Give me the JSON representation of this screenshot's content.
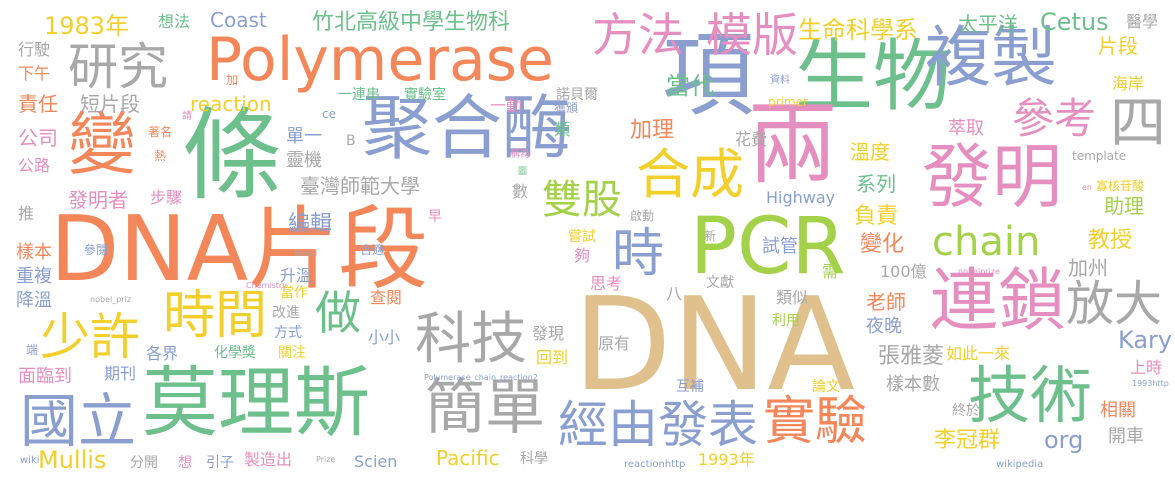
{
  "colors": {
    "orange": "#f4875a",
    "green": "#6dbf8c",
    "blue": "#8a9fd0",
    "pink": "#e58fc0",
    "lime": "#a3d14a",
    "yellow": "#f2cf2a",
    "tan": "#e0c08c",
    "gray": "#a8a8a8"
  },
  "words": [
    {
      "text": "DNA片段"
    },
    {
      "text": "DNA"
    },
    {
      "text": "條"
    },
    {
      "text": "聚合酶"
    },
    {
      "text": "生物"
    },
    {
      "text": "PCR"
    },
    {
      "text": "莫理斯"
    },
    {
      "text": "Polymerase"
    },
    {
      "text": "項"
    },
    {
      "text": "兩"
    },
    {
      "text": "發明"
    },
    {
      "text": "連鎖"
    },
    {
      "text": "複製"
    },
    {
      "text": "變"
    },
    {
      "text": "技術"
    },
    {
      "text": "實驗"
    },
    {
      "text": "簡單"
    },
    {
      "text": "經由發表"
    },
    {
      "text": "國立"
    },
    {
      "text": "科技"
    },
    {
      "text": "時間"
    },
    {
      "text": "少許"
    },
    {
      "text": "合成"
    },
    {
      "text": "雙股"
    },
    {
      "text": "時"
    },
    {
      "text": "方法"
    },
    {
      "text": "模版"
    },
    {
      "text": "研究"
    },
    {
      "text": "chain"
    },
    {
      "text": "放大"
    },
    {
      "text": "參考"
    },
    {
      "text": "做"
    },
    {
      "text": "四"
    },
    {
      "text": "竹北高級中學生物科"
    },
    {
      "text": "生命科學系"
    },
    {
      "text": "Cetus"
    },
    {
      "text": "1983年"
    },
    {
      "text": "Coast"
    },
    {
      "text": "想法"
    },
    {
      "text": "太平洋"
    },
    {
      "text": "醫學"
    },
    {
      "text": "片段"
    },
    {
      "text": "海岸"
    },
    {
      "text": "行駛"
    },
    {
      "text": "下午"
    },
    {
      "text": "責任"
    },
    {
      "text": "短片段"
    },
    {
      "text": "公司"
    },
    {
      "text": "公路"
    },
    {
      "text": "發明者"
    },
    {
      "text": "步驟"
    },
    {
      "text": "推"
    },
    {
      "text": "樣本"
    },
    {
      "text": "參閱"
    },
    {
      "text": "重複"
    },
    {
      "text": "降溫"
    },
    {
      "text": "reaction"
    },
    {
      "text": "一連串"
    },
    {
      "text": "實驗室"
    },
    {
      "text": "一動"
    },
    {
      "text": "諾貝爾"
    },
    {
      "text": "獲頒"
    },
    {
      "text": "當代"
    },
    {
      "text": "加理"
    },
    {
      "text": "花費"
    },
    {
      "text": "溫度"
    },
    {
      "text": "萃取"
    },
    {
      "text": "系列"
    },
    {
      "text": "負責"
    },
    {
      "text": "助理"
    },
    {
      "text": "教授"
    },
    {
      "text": "加州"
    },
    {
      "text": "Kary"
    },
    {
      "text": "Mullis"
    },
    {
      "text": "臺灣師範大學"
    },
    {
      "text": "單一"
    },
    {
      "text": "靈機"
    },
    {
      "text": "編輯"
    },
    {
      "text": "升溫"
    },
    {
      "text": "當作"
    },
    {
      "text": "方式"
    },
    {
      "text": "改進"
    },
    {
      "text": "查閱"
    },
    {
      "text": "化學獎"
    },
    {
      "text": "關注"
    },
    {
      "text": "各界"
    },
    {
      "text": "期刊"
    },
    {
      "text": "面臨到"
    },
    {
      "text": "端"
    },
    {
      "text": "小小"
    },
    {
      "text": "發現"
    },
    {
      "text": "回到"
    },
    {
      "text": "原有"
    },
    {
      "text": "互補"
    },
    {
      "text": "論文"
    },
    {
      "text": "終於"
    },
    {
      "text": "上時"
    },
    {
      "text": "相關"
    },
    {
      "text": "開車"
    },
    {
      "text": "org"
    },
    {
      "text": "李冠群"
    },
    {
      "text": "張雅菱"
    },
    {
      "text": "如此一來"
    },
    {
      "text": "樣本數"
    },
    {
      "text": "夜晚"
    },
    {
      "text": "老師"
    },
    {
      "text": "變化"
    },
    {
      "text": "試管"
    },
    {
      "text": "需"
    },
    {
      "text": "100億"
    },
    {
      "text": "類似"
    },
    {
      "text": "利用"
    },
    {
      "text": "文獻"
    },
    {
      "text": "思考"
    },
    {
      "text": "八"
    },
    {
      "text": "夠"
    },
    {
      "text": "嘗試"
    },
    {
      "text": "合適"
    },
    {
      "text": "早"
    },
    {
      "text": "啟動"
    },
    {
      "text": "新"
    },
    {
      "text": "Highway"
    },
    {
      "text": "數"
    },
    {
      "text": "Pacific"
    },
    {
      "text": "1993年"
    },
    {
      "text": "科學"
    },
    {
      "text": "Scien"
    },
    {
      "text": "製造出"
    },
    {
      "text": "引子"
    },
    {
      "text": "想"
    },
    {
      "text": "分開"
    },
    {
      "text": "wiki"
    },
    {
      "text": "Prize"
    },
    {
      "text": "reactionhttp"
    },
    {
      "text": "wikipedia"
    },
    {
      "text": "primer"
    },
    {
      "text": "資料"
    },
    {
      "text": "template"
    },
    {
      "text": "寡核苷酸"
    },
    {
      "text": "en"
    },
    {
      "text": "稱為"
    },
    {
      "text": "類"
    },
    {
      "text": "著名"
    },
    {
      "text": "熱"
    },
    {
      "text": "請"
    },
    {
      "text": "加"
    },
    {
      "text": "ce"
    },
    {
      "text": "B"
    },
    {
      "text": "nobel_priz"
    },
    {
      "text": "Nobel"
    },
    {
      "text": "Chemistry"
    },
    {
      "text": "Polymerase_chain_reaction2"
    },
    {
      "text": "nobelprize"
    },
    {
      "text": "1993http"
    },
    {
      "text": "圖"
    }
  ]
}
